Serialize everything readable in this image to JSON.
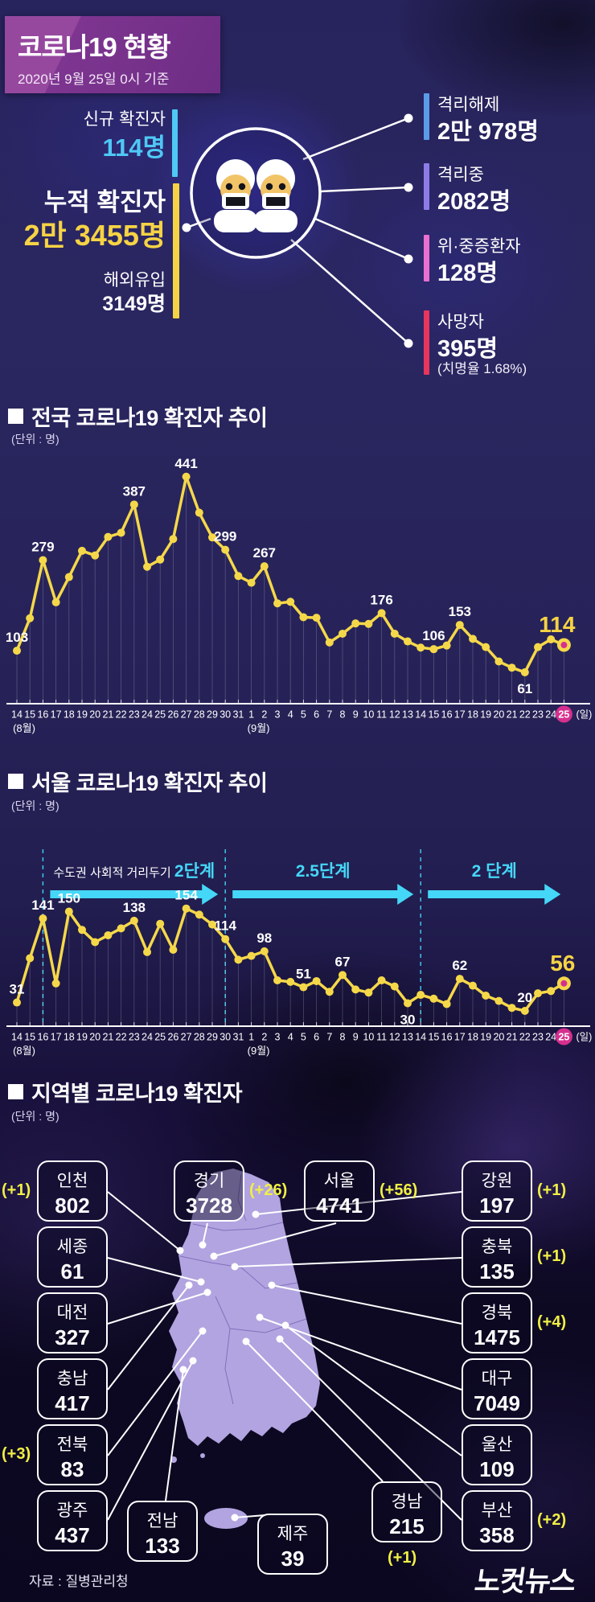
{
  "header": {
    "title": "코로나19 현황",
    "date": "2020년 9월 25일 0시 기준"
  },
  "summary": {
    "new_cases": {
      "label": "신규 확진자",
      "value": "114명",
      "color": "#4fc8f5"
    },
    "cumulative": {
      "label": "누적 확진자",
      "value": "2만 3455명",
      "color": "#f6d344"
    },
    "imported": {
      "label": "해외유입",
      "value": "3149명"
    },
    "released": {
      "label": "격리해제",
      "value": "2만 978명",
      "color": "#5b9ce8"
    },
    "quarantined": {
      "label": "격리중",
      "value": "2082명",
      "color": "#8d7ce8"
    },
    "critical": {
      "label": "위·중증환자",
      "value": "128명",
      "color": "#ea6fd0"
    },
    "deaths": {
      "label": "사망자",
      "value": "395명",
      "note": "(치명율 1.68%)",
      "color": "#e8355e"
    }
  },
  "charts": {
    "national": {
      "title": "전국 코로나19 확진자 추이",
      "unit": "(단위 : 명)"
    },
    "seoul": {
      "title": "서울 코로나19 확진자 추이",
      "unit": "(단위 : 명)"
    }
  },
  "chart_data": [
    {
      "type": "line",
      "title": "전국 코로나19 확진자 추이",
      "unit": "(단위 : 명)",
      "categories": [
        "14",
        "15",
        "16",
        "17",
        "18",
        "19",
        "20",
        "21",
        "22",
        "23",
        "24",
        "25",
        "26",
        "27",
        "28",
        "29",
        "30",
        "31",
        "1",
        "2",
        "3",
        "4",
        "5",
        "6",
        "7",
        "8",
        "9",
        "10",
        "11",
        "12",
        "13",
        "14",
        "15",
        "16",
        "17",
        "18",
        "19",
        "20",
        "21",
        "22",
        "23",
        "24",
        "25"
      ],
      "month_labels": [
        {
          "index": 0,
          "label": "(8월)"
        },
        {
          "index": 18,
          "label": "(9월)"
        }
      ],
      "axis_suffix": "(일)",
      "highlight_index": 42,
      "values": [
        103,
        166,
        279,
        197,
        246,
        297,
        288,
        324,
        332,
        387,
        266,
        280,
        320,
        441,
        371,
        323,
        299,
        248,
        235,
        267,
        195,
        198,
        168,
        167,
        119,
        136,
        156,
        155,
        176,
        136,
        121,
        109,
        106,
        113,
        153,
        126,
        110,
        82,
        70,
        61,
        110,
        125,
        114
      ],
      "labeled_points": [
        0,
        2,
        9,
        13,
        16,
        19,
        28,
        32,
        34,
        39,
        42
      ],
      "labels_below": [
        39
      ],
      "final_label": "114",
      "line_color": "#f5d84a",
      "highlight_color": "#d6308f",
      "ylim": [
        0,
        470
      ]
    },
    {
      "type": "line",
      "title": "서울 코로나19 확진자 추이",
      "unit": "(단위 : 명)",
      "categories": [
        "14",
        "15",
        "16",
        "17",
        "18",
        "19",
        "20",
        "21",
        "22",
        "23",
        "24",
        "25",
        "26",
        "27",
        "28",
        "29",
        "30",
        "31",
        "1",
        "2",
        "3",
        "4",
        "5",
        "6",
        "7",
        "8",
        "9",
        "10",
        "11",
        "12",
        "13",
        "14",
        "15",
        "16",
        "17",
        "18",
        "19",
        "20",
        "21",
        "22",
        "23",
        "24",
        "25"
      ],
      "month_labels": [
        {
          "index": 0,
          "label": "(8월)"
        },
        {
          "index": 18,
          "label": "(9월)"
        }
      ],
      "axis_suffix": "(일)",
      "highlight_index": 42,
      "values": [
        31,
        89,
        141,
        56,
        150,
        126,
        110,
        119,
        128,
        138,
        97,
        134,
        100,
        154,
        146,
        133,
        114,
        87,
        92,
        98,
        60,
        58,
        51,
        59,
        45,
        67,
        48,
        44,
        60,
        52,
        30,
        41,
        36,
        29,
        62,
        53,
        40,
        33,
        24,
        20,
        43,
        46,
        56
      ],
      "labeled_points": [
        0,
        2,
        4,
        9,
        13,
        16,
        19,
        22,
        25,
        30,
        34,
        39,
        42
      ],
      "labels_below": [
        30
      ],
      "final_label": "56",
      "line_color": "#f5d84a",
      "highlight_color": "#d6308f",
      "dividers": [
        2,
        16,
        31
      ],
      "stages": [
        {
          "prefix": "수도권 사회적 거리두기 ",
          "label": "2단계"
        },
        {
          "prefix": "",
          "label": "2.5단계"
        },
        {
          "prefix": "",
          "label": "2 단계"
        }
      ],
      "stage_color": "#45d7f7",
      "ylim": [
        0,
        230
      ]
    }
  ],
  "regions": {
    "title": "지역별 코로나19 확진자",
    "unit": "(단위 : 명)",
    "items": [
      {
        "key": "incheon",
        "name": "인천",
        "value": "802",
        "delta": "(+1)"
      },
      {
        "key": "gyeonggi",
        "name": "경기",
        "value": "3728",
        "delta": "(+26)"
      },
      {
        "key": "seoul",
        "name": "서울",
        "value": "4741",
        "delta": "(+56)"
      },
      {
        "key": "gangwon",
        "name": "강원",
        "value": "197",
        "delta": "(+1)"
      },
      {
        "key": "sejong",
        "name": "세종",
        "value": "61",
        "delta": ""
      },
      {
        "key": "chungbuk",
        "name": "충북",
        "value": "135",
        "delta": "(+1)"
      },
      {
        "key": "daejeon",
        "name": "대전",
        "value": "327",
        "delta": ""
      },
      {
        "key": "gyeongbuk",
        "name": "경북",
        "value": "1475",
        "delta": "(+4)"
      },
      {
        "key": "chungnam",
        "name": "충남",
        "value": "417",
        "delta": ""
      },
      {
        "key": "daegu",
        "name": "대구",
        "value": "7049",
        "delta": ""
      },
      {
        "key": "jeonbuk",
        "name": "전북",
        "value": "83",
        "delta": "(+3)"
      },
      {
        "key": "ulsan",
        "name": "울산",
        "value": "109",
        "delta": ""
      },
      {
        "key": "gwangju",
        "name": "광주",
        "value": "437",
        "delta": ""
      },
      {
        "key": "busan",
        "name": "부산",
        "value": "358",
        "delta": "(+2)"
      },
      {
        "key": "jeonnam",
        "name": "전남",
        "value": "133",
        "delta": ""
      },
      {
        "key": "jeju",
        "name": "제주",
        "value": "39",
        "delta": ""
      },
      {
        "key": "gyeongnam",
        "name": "경남",
        "value": "215",
        "delta": "(+1)"
      }
    ]
  },
  "footer": {
    "source": "자료 : 질병관리청",
    "logo": "노컷뉴스"
  }
}
